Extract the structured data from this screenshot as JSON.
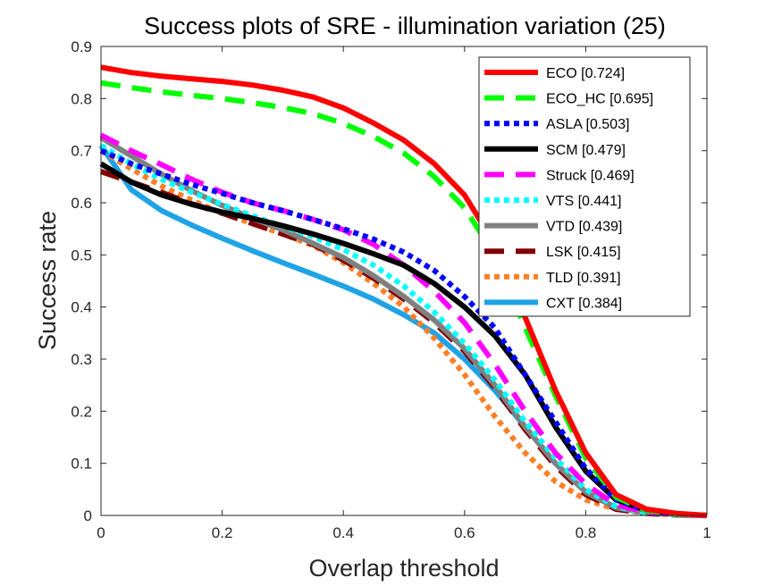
{
  "chart_data": {
    "type": "line",
    "title": "Success plots of SRE - illumination variation (25)",
    "xlabel": "Overlap threshold",
    "ylabel": "Success rate",
    "xlim": [
      0,
      1
    ],
    "ylim": [
      0,
      0.9
    ],
    "xticks": [
      "0",
      "0.2",
      "0.4",
      "0.6",
      "0.8",
      "1"
    ],
    "yticks": [
      "0",
      "0.1",
      "0.2",
      "0.3",
      "0.4",
      "0.5",
      "0.6",
      "0.7",
      "0.8",
      "0.9"
    ],
    "legend_position": "top-right",
    "x": [
      0,
      0.05,
      0.1,
      0.15,
      0.2,
      0.25,
      0.3,
      0.35,
      0.4,
      0.45,
      0.5,
      0.55,
      0.6,
      0.65,
      0.7,
      0.75,
      0.8,
      0.85,
      0.9,
      0.95,
      1
    ],
    "series": [
      {
        "name": "ECO",
        "score": "0.724",
        "label": "ECO [0.724]",
        "color": "#ff0000",
        "style": "solid",
        "values": [
          0.86,
          0.85,
          0.843,
          0.838,
          0.833,
          0.826,
          0.816,
          0.803,
          0.782,
          0.753,
          0.72,
          0.675,
          0.615,
          0.52,
          0.38,
          0.24,
          0.12,
          0.04,
          0.012,
          0.004,
          0
        ]
      },
      {
        "name": "ECO_HC",
        "score": "0.695",
        "label": "ECO_HC [0.695]",
        "color": "#00ff00",
        "style": "dashed",
        "values": [
          0.83,
          0.821,
          0.813,
          0.806,
          0.8,
          0.792,
          0.783,
          0.771,
          0.752,
          0.727,
          0.695,
          0.65,
          0.59,
          0.5,
          0.36,
          0.23,
          0.11,
          0.035,
          0.01,
          0.003,
          0
        ]
      },
      {
        "name": "ASLA",
        "score": "0.503",
        "label": "ASLA [0.503]",
        "color": "#0000ff",
        "style": "dotted",
        "values": [
          0.7,
          0.675,
          0.655,
          0.635,
          0.618,
          0.6,
          0.585,
          0.568,
          0.55,
          0.53,
          0.505,
          0.47,
          0.42,
          0.36,
          0.27,
          0.18,
          0.09,
          0.03,
          0.01,
          0.003,
          0
        ]
      },
      {
        "name": "SCM",
        "score": "0.479",
        "label": "SCM [0.479]",
        "color": "#000000",
        "style": "solid",
        "values": [
          0.675,
          0.64,
          0.615,
          0.597,
          0.582,
          0.57,
          0.556,
          0.54,
          0.522,
          0.502,
          0.48,
          0.445,
          0.4,
          0.345,
          0.27,
          0.17,
          0.085,
          0.03,
          0.01,
          0.003,
          0
        ]
      },
      {
        "name": "Struck",
        "score": "0.469",
        "label": "Struck [0.469]",
        "color": "#ff00ff",
        "style": "dashed",
        "values": [
          0.73,
          0.7,
          0.673,
          0.645,
          0.62,
          0.6,
          0.585,
          0.568,
          0.548,
          0.52,
          0.48,
          0.43,
          0.37,
          0.29,
          0.2,
          0.12,
          0.06,
          0.02,
          0.006,
          0.002,
          0
        ]
      },
      {
        "name": "VTS",
        "score": "0.441",
        "label": "VTS [0.441]",
        "color": "#00ffff",
        "style": "dotted",
        "values": [
          0.71,
          0.675,
          0.645,
          0.62,
          0.597,
          0.575,
          0.555,
          0.535,
          0.51,
          0.48,
          0.44,
          0.39,
          0.33,
          0.26,
          0.18,
          0.11,
          0.05,
          0.017,
          0.005,
          0.002,
          0
        ]
      },
      {
        "name": "VTD",
        "score": "0.439",
        "label": "VTD [0.439]",
        "color": "#808080",
        "style": "solid",
        "values": [
          0.725,
          0.69,
          0.655,
          0.623,
          0.595,
          0.57,
          0.548,
          0.522,
          0.495,
          0.46,
          0.42,
          0.375,
          0.32,
          0.25,
          0.17,
          0.1,
          0.045,
          0.015,
          0.005,
          0.002,
          0
        ]
      },
      {
        "name": "LSK",
        "score": "0.415",
        "label": "LSK [0.415]",
        "color": "#800000",
        "style": "dashed",
        "values": [
          0.66,
          0.64,
          0.62,
          0.598,
          0.58,
          0.56,
          0.54,
          0.52,
          0.49,
          0.455,
          0.415,
          0.37,
          0.315,
          0.245,
          0.165,
          0.095,
          0.04,
          0.012,
          0.004,
          0.001,
          0
        ]
      },
      {
        "name": "TLD",
        "score": "0.391",
        "label": "TLD [0.391]",
        "color": "#ff7f27",
        "style": "dotted",
        "values": [
          0.7,
          0.665,
          0.632,
          0.605,
          0.58,
          0.56,
          0.54,
          0.518,
          0.485,
          0.445,
          0.4,
          0.34,
          0.27,
          0.19,
          0.12,
          0.065,
          0.03,
          0.012,
          0.004,
          0.001,
          0
        ]
      },
      {
        "name": "CXT",
        "score": "0.384",
        "label": "CXT [0.384]",
        "color": "#1fa3e6",
        "style": "solid",
        "values": [
          0.71,
          0.625,
          0.585,
          0.557,
          0.532,
          0.508,
          0.485,
          0.463,
          0.44,
          0.415,
          0.385,
          0.35,
          0.3,
          0.24,
          0.17,
          0.1,
          0.045,
          0.015,
          0.005,
          0.002,
          0
        ]
      }
    ]
  }
}
